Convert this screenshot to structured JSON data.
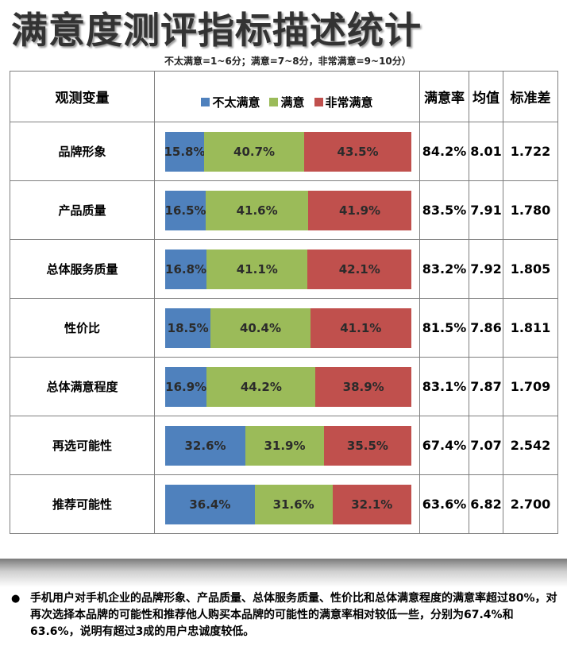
{
  "title": "满意度测评指标描述统计",
  "subtitle": "不太满意=1~6分；满意=7~8分，非常满意=9~10分）",
  "headers": {
    "variable": "观测变量",
    "rate": "满意率",
    "mean": "均值",
    "std": "标准差"
  },
  "colors": {
    "not_satisfied": "#4f81bd",
    "satisfied": "#9bbb59",
    "very_satisfied": "#c0504d"
  },
  "chart_data": {
    "type": "bar",
    "stacked": true,
    "orientation": "horizontal",
    "categories": [
      "品牌形象",
      "产品质量",
      "总体服务质量",
      "性价比",
      "总体满意程度",
      "再选可能性",
      "推荐可能性"
    ],
    "series": [
      {
        "name": "不太满意",
        "values": [
          15.8,
          16.5,
          16.8,
          18.5,
          16.9,
          32.6,
          36.4
        ],
        "labels": [
          "15.8%",
          "16.5%",
          "16.8%",
          "18.5%",
          "16.9%",
          "32.6%",
          "36.4%"
        ]
      },
      {
        "name": "满意",
        "values": [
          40.7,
          41.6,
          41.1,
          40.4,
          44.2,
          31.9,
          31.6
        ],
        "labels": [
          "40.7%",
          "41.6%",
          "41.1%",
          "40.4%",
          "44.2%",
          "31.9%",
          "31.6%"
        ]
      },
      {
        "name": "非常满意",
        "values": [
          43.5,
          41.9,
          42.1,
          41.1,
          38.9,
          35.5,
          32.1
        ],
        "labels": [
          "43.5%",
          "41.9%",
          "42.1%",
          "41.1%",
          "38.9%",
          "35.5%",
          "32.1%"
        ]
      }
    ],
    "legend_position": "top"
  },
  "rows": [
    {
      "name": "品牌形象",
      "rate": "84.2%",
      "mean": "8.01",
      "std": "1.722"
    },
    {
      "name": "产品质量",
      "rate": "83.5%",
      "mean": "7.91",
      "std": "1.780"
    },
    {
      "name": "总体服务质量",
      "rate": "83.2%",
      "mean": "7.92",
      "std": "1.805"
    },
    {
      "name": "性价比",
      "rate": "81.5%",
      "mean": "7.86",
      "std": "1.811"
    },
    {
      "name": "总体满意程度",
      "rate": "83.1%",
      "mean": "7.87",
      "std": "1.709"
    },
    {
      "name": "再选可能性",
      "rate": "67.4%",
      "mean": "7.07",
      "std": "2.542"
    },
    {
      "name": "推荐可能性",
      "rate": "63.6%",
      "mean": "6.82",
      "std": "2.700"
    }
  ],
  "note": {
    "bullet": "●",
    "text": "手机用户对手机企业的品牌形象、产品质量、总体服务质量、性价比和总体满意程度的满意率超过80%，对再次选择本品牌的可能性和推荐他人购买本品牌的可能性的满意率相对较低一些，分别为67.4%和63.6%，说明有超过3成的用户忠诚度较低。"
  }
}
